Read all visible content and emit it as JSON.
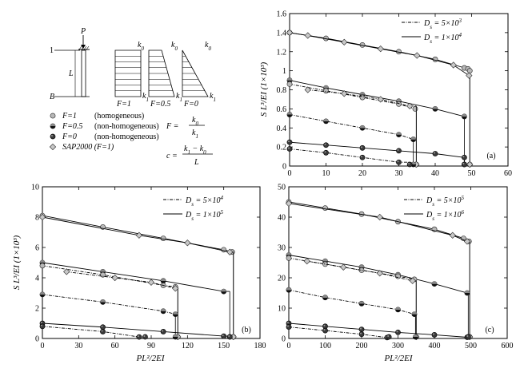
{
  "schematic": {
    "top_label": "P",
    "left_top_label": "1",
    "left_bottom_label": "B",
    "length_label": "L",
    "profiles": [
      {
        "caption": "F=1",
        "top": "k",
        "top_sub": "0",
        "bottom": "k",
        "bottom_sub": "1"
      },
      {
        "caption": "F=0.5",
        "top": "k",
        "top_sub": "0",
        "bottom": "k",
        "bottom_sub": "1"
      },
      {
        "caption": "F=0",
        "top": "k",
        "top_sub": "0",
        "bottom": "k",
        "bottom_sub": "1"
      }
    ]
  },
  "marker_legend": [
    {
      "key": "F=1",
      "desc": "(homogeneous)",
      "marker": "light"
    },
    {
      "key": "F=0.5",
      "desc": "(non-homogeneous)",
      "marker": "half"
    },
    {
      "key": "F=0",
      "desc": "(non-homogeneous)",
      "marker": "dark"
    },
    {
      "key": "SAP2000 (F=1)",
      "desc": "",
      "marker": "diamond"
    }
  ],
  "formulas": {
    "F_lhs": "F =",
    "F_num": "k",
    "F_num_sub": "0",
    "F_den": "k",
    "F_den_sub": "1",
    "c_lhs": "c =",
    "c_num": "k",
    "c_num_sub1": "1",
    "c_num_mid": " − k",
    "c_num_sub2": "0",
    "c_den": "L"
  },
  "chart_data": [
    {
      "type": "line",
      "panel_label": "(a)",
      "xlabel": "",
      "ylabel": "S L³/EI (1×10³)",
      "xlim": [
        0,
        60
      ],
      "ylim": [
        0,
        1.6
      ],
      "xticks": [
        0,
        10,
        20,
        30,
        40,
        50,
        60
      ],
      "yticks": [
        0,
        0.2,
        0.4,
        0.6,
        0.8,
        1.0,
        1.2,
        1.4,
        1.6
      ],
      "legend": [
        {
          "label": "D",
          "sub": "s",
          "value": " = 5×10",
          "exp": "3",
          "style": "dashdot"
        },
        {
          "label": "D",
          "sub": "s",
          "value": " = 1×10",
          "exp": "4",
          "style": "solid"
        }
      ],
      "series": [
        {
          "style": "solid",
          "marker": "light",
          "x": [
            0,
            10,
            20,
            30,
            40,
            48,
            49,
            49.5
          ],
          "y": [
            1.4,
            1.34,
            1.27,
            1.2,
            1.12,
            1.03,
            1.02,
            1.0
          ],
          "drop_x": 49.5
        },
        {
          "style": "solid",
          "marker": "diamond",
          "x": [
            0,
            5,
            15,
            25,
            35,
            45,
            49.3
          ],
          "y": [
            1.4,
            1.37,
            1.3,
            1.23,
            1.16,
            1.06,
            0.95
          ],
          "drop_x": 49.5
        },
        {
          "style": "solid",
          "marker": "half",
          "x": [
            0,
            10,
            20,
            30,
            40,
            48
          ],
          "y": [
            0.9,
            0.82,
            0.75,
            0.68,
            0.6,
            0.52
          ],
          "drop_x": 48
        },
        {
          "style": "dashdot",
          "marker": "light",
          "x": [
            0,
            10,
            20,
            30,
            34.5
          ],
          "y": [
            0.86,
            0.79,
            0.72,
            0.65,
            0.6
          ],
          "drop_x": 34.8
        },
        {
          "style": "dashdot",
          "marker": "diamond",
          "x": [
            5,
            15,
            25,
            33
          ],
          "y": [
            0.8,
            0.76,
            0.7,
            0.63
          ],
          "drop_x": 34.8
        },
        {
          "style": "solid",
          "marker": "dark",
          "x": [
            0,
            10,
            20,
            30,
            40,
            48
          ],
          "y": [
            0.25,
            0.22,
            0.19,
            0.16,
            0.13,
            0.09
          ],
          "drop_x": 48
        },
        {
          "style": "dashdot",
          "marker": "half",
          "x": [
            0,
            10,
            20,
            30,
            34
          ],
          "y": [
            0.54,
            0.47,
            0.4,
            0.33,
            0.28
          ],
          "drop_x": 34
        },
        {
          "style": "dashdot",
          "marker": "dark",
          "x": [
            0,
            10,
            20,
            30
          ],
          "y": [
            0.18,
            0.14,
            0.09,
            0.04
          ],
          "drop_x": 33
        }
      ]
    },
    {
      "type": "line",
      "panel_label": "(b)",
      "xlabel": "PL²/2EI",
      "ylabel": "S L³/EI (1×10³)",
      "xlim": [
        0,
        180
      ],
      "ylim": [
        0,
        10
      ],
      "xticks": [
        0,
        30,
        60,
        90,
        120,
        150,
        180
      ],
      "yticks": [
        0,
        2,
        4,
        6,
        8,
        10
      ],
      "legend": [
        {
          "label": "D",
          "sub": "s",
          "value": " = 5×10",
          "exp": "4",
          "style": "dashdot"
        },
        {
          "label": "D",
          "sub": "s",
          "value": " = 1×10",
          "exp": "5",
          "style": "solid"
        }
      ],
      "series": [
        {
          "style": "solid",
          "marker": "light",
          "x": [
            0,
            50,
            100,
            150,
            157
          ],
          "y": [
            8.1,
            7.35,
            6.6,
            5.85,
            5.7
          ],
          "drop_x": 158
        },
        {
          "style": "solid",
          "marker": "diamond",
          "x": [
            0,
            80,
            120,
            155
          ],
          "y": [
            8.0,
            6.8,
            6.3,
            5.7
          ],
          "drop_x": 158
        },
        {
          "style": "solid",
          "marker": "half",
          "x": [
            0,
            50,
            100,
            150
          ],
          "y": [
            5.0,
            4.4,
            3.8,
            3.1
          ],
          "drop_x": 155
        },
        {
          "style": "dashdot",
          "marker": "light",
          "x": [
            0,
            50,
            100,
            110
          ],
          "y": [
            4.8,
            4.2,
            3.5,
            3.4
          ],
          "drop_x": 112
        },
        {
          "style": "dashdot",
          "marker": "diamond",
          "x": [
            20,
            60,
            90,
            110
          ],
          "y": [
            4.4,
            4.0,
            3.7,
            3.3
          ],
          "drop_x": 112
        },
        {
          "style": "dashdot",
          "marker": "half",
          "x": [
            0,
            50,
            100,
            110
          ],
          "y": [
            2.9,
            2.4,
            1.8,
            1.6
          ],
          "drop_x": 110
        },
        {
          "style": "solid",
          "marker": "dark",
          "x": [
            0,
            50,
            100,
            150
          ],
          "y": [
            1.0,
            0.75,
            0.45,
            0.15
          ],
          "drop_x": 155
        },
        {
          "style": "dashdot",
          "marker": "dark",
          "x": [
            0,
            50,
            80
          ],
          "y": [
            0.8,
            0.45,
            0.1
          ],
          "drop_x": 85
        }
      ]
    },
    {
      "type": "line",
      "panel_label": "(c)",
      "xlabel": "PL²/2EI",
      "ylabel": "",
      "xlim": [
        0,
        600
      ],
      "ylim": [
        0,
        50
      ],
      "xticks": [
        0,
        100,
        200,
        300,
        400,
        500,
        600
      ],
      "yticks": [
        0,
        10,
        20,
        30,
        40,
        50
      ],
      "legend": [
        {
          "label": "D",
          "sub": "s",
          "value": " = 5×10",
          "exp": "5",
          "style": "dashdot"
        },
        {
          "label": "D",
          "sub": "s",
          "value": " = 1×10",
          "exp": "6",
          "style": "solid"
        }
      ],
      "series": [
        {
          "style": "solid",
          "marker": "light",
          "x": [
            0,
            100,
            200,
            300,
            400,
            480,
            495
          ],
          "y": [
            45,
            43,
            41,
            38.5,
            36,
            33,
            32
          ],
          "drop_x": 497
        },
        {
          "style": "solid",
          "marker": "diamond",
          "x": [
            0,
            250,
            450,
            490
          ],
          "y": [
            44.5,
            40,
            34,
            32
          ],
          "drop_x": 497
        },
        {
          "style": "solid",
          "marker": "half",
          "x": [
            0,
            100,
            200,
            300,
            400,
            490
          ],
          "y": [
            27.5,
            25.5,
            23.5,
            21,
            18,
            15
          ],
          "drop_x": 493
        },
        {
          "style": "dashdot",
          "marker": "light",
          "x": [
            0,
            100,
            200,
            300,
            345
          ],
          "y": [
            26.5,
            24.5,
            22.5,
            20.5,
            19.5
          ],
          "drop_x": 350
        },
        {
          "style": "dashdot",
          "marker": "diamond",
          "x": [
            50,
            150,
            250,
            340
          ],
          "y": [
            25.5,
            23.5,
            21.5,
            19
          ],
          "drop_x": 350
        },
        {
          "style": "dashdot",
          "marker": "half",
          "x": [
            0,
            100,
            200,
            300,
            345
          ],
          "y": [
            16,
            13.5,
            11.5,
            9.5,
            8
          ],
          "drop_x": 348
        },
        {
          "style": "solid",
          "marker": "dark",
          "x": [
            0,
            100,
            200,
            300,
            400,
            490
          ],
          "y": [
            5,
            4,
            3,
            2,
            1.2,
            0.4
          ],
          "drop_x": 493
        },
        {
          "style": "dashdot",
          "marker": "dark",
          "x": [
            0,
            100,
            200,
            270
          ],
          "y": [
            3.8,
            2.6,
            1.4,
            0.3
          ],
          "drop_x": 275
        }
      ]
    }
  ]
}
